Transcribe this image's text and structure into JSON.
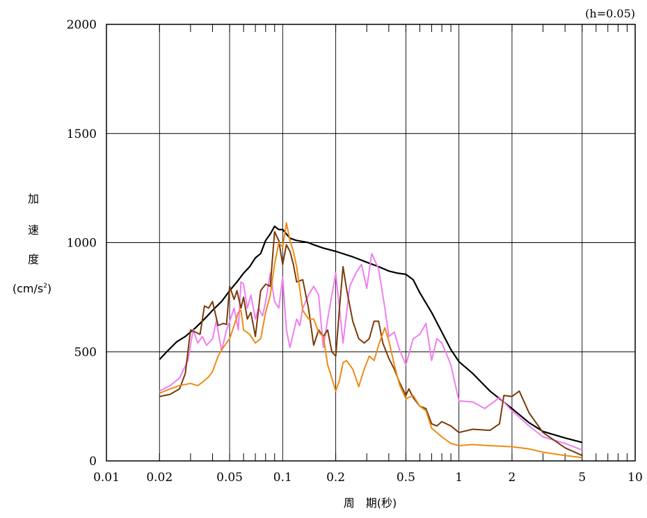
{
  "chart_data": {
    "type": "line",
    "title": "",
    "annotation": "(h=0.05)",
    "xlabel": "周　期(秒)",
    "ylabel_chars": [
      "加",
      "速",
      "度"
    ],
    "ylabel_unit_base": "(cm/s",
    "ylabel_unit_sup": "2",
    "ylabel_unit_close": ")",
    "x_scale": "log",
    "xlim": [
      0.01,
      10
    ],
    "ylim": [
      0,
      2000
    ],
    "grid": true,
    "legend": "none",
    "x_ticks": [
      {
        "value": 0.01,
        "label": "0.01"
      },
      {
        "value": 0.02,
        "label": "0.02"
      },
      {
        "value": 0.05,
        "label": "0.05"
      },
      {
        "value": 0.1,
        "label": "0.1"
      },
      {
        "value": 0.2,
        "label": "0.2"
      },
      {
        "value": 0.5,
        "label": "0.5"
      },
      {
        "value": 1,
        "label": "1"
      },
      {
        "value": 2,
        "label": "2"
      },
      {
        "value": 5,
        "label": "5"
      },
      {
        "value": 10,
        "label": "10"
      }
    ],
    "y_ticks": [
      {
        "value": 0,
        "label": "0"
      },
      {
        "value": 500,
        "label": "500"
      },
      {
        "value": 1000,
        "label": "1000"
      },
      {
        "value": 1500,
        "label": "1500"
      },
      {
        "value": 2000,
        "label": "2000"
      }
    ],
    "series": [
      {
        "color": "#000000",
        "points": [
          [
            0.02,
            465
          ],
          [
            0.022,
            500
          ],
          [
            0.025,
            545
          ],
          [
            0.028,
            570
          ],
          [
            0.032,
            610
          ],
          [
            0.036,
            650
          ],
          [
            0.04,
            690
          ],
          [
            0.045,
            730
          ],
          [
            0.05,
            780
          ],
          [
            0.055,
            820
          ],
          [
            0.06,
            860
          ],
          [
            0.065,
            890
          ],
          [
            0.07,
            930
          ],
          [
            0.075,
            950
          ],
          [
            0.08,
            1010
          ],
          [
            0.085,
            1040
          ],
          [
            0.09,
            1075
          ],
          [
            0.095,
            1060
          ],
          [
            0.1,
            1060
          ],
          [
            0.11,
            1020
          ],
          [
            0.12,
            1010
          ],
          [
            0.13,
            1005
          ],
          [
            0.14,
            1000
          ],
          [
            0.15,
            990
          ],
          [
            0.17,
            975
          ],
          [
            0.2,
            960
          ],
          [
            0.25,
            935
          ],
          [
            0.3,
            910
          ],
          [
            0.35,
            890
          ],
          [
            0.4,
            870
          ],
          [
            0.45,
            860
          ],
          [
            0.5,
            855
          ],
          [
            0.55,
            830
          ],
          [
            0.6,
            770
          ],
          [
            0.7,
            680
          ],
          [
            0.8,
            590
          ],
          [
            0.9,
            510
          ],
          [
            1.0,
            455
          ],
          [
            1.2,
            400
          ],
          [
            1.5,
            320
          ],
          [
            2.0,
            240
          ],
          [
            2.5,
            175
          ],
          [
            3.0,
            135
          ],
          [
            4.0,
            105
          ],
          [
            5.0,
            85
          ]
        ]
      },
      {
        "color": "#f07ef0",
        "points": [
          [
            0.02,
            320
          ],
          [
            0.023,
            345
          ],
          [
            0.026,
            380
          ],
          [
            0.029,
            460
          ],
          [
            0.031,
            600
          ],
          [
            0.033,
            540
          ],
          [
            0.035,
            570
          ],
          [
            0.037,
            530
          ],
          [
            0.04,
            560
          ],
          [
            0.042,
            640
          ],
          [
            0.045,
            505
          ],
          [
            0.048,
            600
          ],
          [
            0.05,
            640
          ],
          [
            0.053,
            700
          ],
          [
            0.056,
            600
          ],
          [
            0.058,
            820
          ],
          [
            0.06,
            810
          ],
          [
            0.063,
            700
          ],
          [
            0.066,
            760
          ],
          [
            0.07,
            650
          ],
          [
            0.073,
            700
          ],
          [
            0.077,
            665
          ],
          [
            0.08,
            730
          ],
          [
            0.085,
            860
          ],
          [
            0.09,
            730
          ],
          [
            0.095,
            700
          ],
          [
            0.1,
            840
          ],
          [
            0.105,
            600
          ],
          [
            0.11,
            520
          ],
          [
            0.12,
            650
          ],
          [
            0.125,
            620
          ],
          [
            0.13,
            700
          ],
          [
            0.14,
            760
          ],
          [
            0.15,
            800
          ],
          [
            0.16,
            760
          ],
          [
            0.17,
            520
          ],
          [
            0.18,
            650
          ],
          [
            0.2,
            860
          ],
          [
            0.21,
            700
          ],
          [
            0.22,
            540
          ],
          [
            0.24,
            800
          ],
          [
            0.26,
            860
          ],
          [
            0.28,
            900
          ],
          [
            0.3,
            790
          ],
          [
            0.32,
            950
          ],
          [
            0.35,
            880
          ],
          [
            0.38,
            700
          ],
          [
            0.4,
            570
          ],
          [
            0.43,
            590
          ],
          [
            0.46,
            510
          ],
          [
            0.5,
            440
          ],
          [
            0.55,
            560
          ],
          [
            0.6,
            580
          ],
          [
            0.65,
            630
          ],
          [
            0.7,
            460
          ],
          [
            0.75,
            560
          ],
          [
            0.8,
            540
          ],
          [
            0.85,
            490
          ],
          [
            0.9,
            440
          ],
          [
            1.0,
            275
          ],
          [
            1.2,
            270
          ],
          [
            1.4,
            240
          ],
          [
            1.7,
            290
          ],
          [
            2.0,
            230
          ],
          [
            2.5,
            160
          ],
          [
            3.0,
            110
          ],
          [
            4.0,
            80
          ],
          [
            5.0,
            50
          ]
        ]
      },
      {
        "color": "#7a3a08",
        "points": [
          [
            0.02,
            295
          ],
          [
            0.023,
            305
          ],
          [
            0.026,
            330
          ],
          [
            0.028,
            400
          ],
          [
            0.03,
            600
          ],
          [
            0.032,
            590
          ],
          [
            0.034,
            580
          ],
          [
            0.036,
            710
          ],
          [
            0.038,
            700
          ],
          [
            0.04,
            730
          ],
          [
            0.043,
            620
          ],
          [
            0.046,
            630
          ],
          [
            0.048,
            625
          ],
          [
            0.05,
            800
          ],
          [
            0.053,
            740
          ],
          [
            0.055,
            780
          ],
          [
            0.058,
            700
          ],
          [
            0.06,
            750
          ],
          [
            0.063,
            650
          ],
          [
            0.066,
            680
          ],
          [
            0.07,
            570
          ],
          [
            0.075,
            780
          ],
          [
            0.08,
            810
          ],
          [
            0.085,
            800
          ],
          [
            0.09,
            1050
          ],
          [
            0.095,
            1010
          ],
          [
            0.1,
            900
          ],
          [
            0.105,
            990
          ],
          [
            0.11,
            960
          ],
          [
            0.115,
            900
          ],
          [
            0.12,
            820
          ],
          [
            0.13,
            830
          ],
          [
            0.14,
            700
          ],
          [
            0.15,
            530
          ],
          [
            0.16,
            600
          ],
          [
            0.17,
            570
          ],
          [
            0.18,
            600
          ],
          [
            0.19,
            500
          ],
          [
            0.2,
            480
          ],
          [
            0.21,
            700
          ],
          [
            0.22,
            890
          ],
          [
            0.23,
            790
          ],
          [
            0.25,
            640
          ],
          [
            0.27,
            560
          ],
          [
            0.29,
            540
          ],
          [
            0.31,
            560
          ],
          [
            0.33,
            640
          ],
          [
            0.35,
            640
          ],
          [
            0.37,
            540
          ],
          [
            0.4,
            470
          ],
          [
            0.43,
            420
          ],
          [
            0.46,
            360
          ],
          [
            0.5,
            300
          ],
          [
            0.52,
            330
          ],
          [
            0.55,
            290
          ],
          [
            0.6,
            250
          ],
          [
            0.65,
            240
          ],
          [
            0.7,
            170
          ],
          [
            0.75,
            160
          ],
          [
            0.8,
            180
          ],
          [
            0.9,
            160
          ],
          [
            1.0,
            130
          ],
          [
            1.2,
            145
          ],
          [
            1.5,
            140
          ],
          [
            1.7,
            170
          ],
          [
            1.8,
            300
          ],
          [
            2.0,
            295
          ],
          [
            2.2,
            320
          ],
          [
            2.5,
            220
          ],
          [
            3.0,
            130
          ],
          [
            4.0,
            60
          ],
          [
            5.0,
            25
          ]
        ]
      },
      {
        "color": "#f08a14",
        "points": [
          [
            0.02,
            310
          ],
          [
            0.023,
            330
          ],
          [
            0.026,
            345
          ],
          [
            0.03,
            355
          ],
          [
            0.033,
            345
          ],
          [
            0.035,
            360
          ],
          [
            0.038,
            385
          ],
          [
            0.04,
            410
          ],
          [
            0.043,
            480
          ],
          [
            0.046,
            520
          ],
          [
            0.05,
            560
          ],
          [
            0.053,
            620
          ],
          [
            0.056,
            680
          ],
          [
            0.058,
            690
          ],
          [
            0.06,
            600
          ],
          [
            0.065,
            580
          ],
          [
            0.07,
            540
          ],
          [
            0.075,
            560
          ],
          [
            0.08,
            680
          ],
          [
            0.085,
            760
          ],
          [
            0.09,
            900
          ],
          [
            0.095,
            1000
          ],
          [
            0.1,
            980
          ],
          [
            0.105,
            1090
          ],
          [
            0.11,
            1010
          ],
          [
            0.115,
            960
          ],
          [
            0.12,
            890
          ],
          [
            0.13,
            690
          ],
          [
            0.14,
            650
          ],
          [
            0.15,
            650
          ],
          [
            0.16,
            590
          ],
          [
            0.17,
            570
          ],
          [
            0.18,
            440
          ],
          [
            0.19,
            380
          ],
          [
            0.2,
            320
          ],
          [
            0.21,
            370
          ],
          [
            0.22,
            450
          ],
          [
            0.23,
            460
          ],
          [
            0.25,
            420
          ],
          [
            0.27,
            340
          ],
          [
            0.29,
            420
          ],
          [
            0.31,
            480
          ],
          [
            0.33,
            460
          ],
          [
            0.35,
            530
          ],
          [
            0.38,
            610
          ],
          [
            0.4,
            550
          ],
          [
            0.43,
            440
          ],
          [
            0.46,
            350
          ],
          [
            0.5,
            285
          ],
          [
            0.55,
            300
          ],
          [
            0.6,
            250
          ],
          [
            0.65,
            230
          ],
          [
            0.7,
            150
          ],
          [
            0.8,
            110
          ],
          [
            0.9,
            80
          ],
          [
            1.0,
            70
          ],
          [
            1.2,
            75
          ],
          [
            1.5,
            70
          ],
          [
            2.0,
            65
          ],
          [
            2.5,
            55
          ],
          [
            3.0,
            40
          ],
          [
            4.0,
            25
          ],
          [
            5.0,
            15
          ]
        ]
      }
    ]
  }
}
